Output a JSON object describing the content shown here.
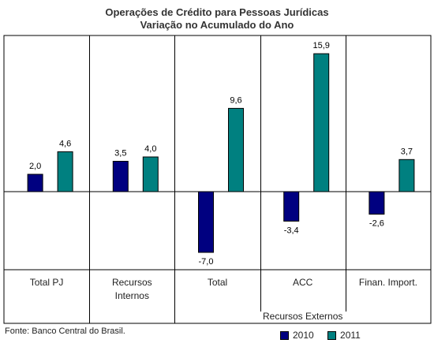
{
  "chart_data": {
    "type": "bar",
    "title": "Operações de Crédito para Pessoas Jurídicas",
    "subtitle": "Variação no Acumulado do Ano",
    "categories": [
      "Total PJ",
      "Recursos Internos",
      "Total",
      "ACC",
      "Finan. Import."
    ],
    "category_labels": [
      [
        "Total PJ"
      ],
      [
        "Recursos",
        "Internos"
      ],
      [
        "Total"
      ],
      [
        "ACC"
      ],
      [
        "Finan. Import."
      ]
    ],
    "group_label": "Recursos Externos",
    "series": [
      {
        "name": "2010",
        "color": "#000080",
        "values": [
          2.0,
          3.5,
          -7.0,
          -3.4,
          -2.6
        ],
        "labels": [
          "2,0",
          "3,5",
          "-7,0",
          "-3,4",
          "-2,6"
        ]
      },
      {
        "name": "2011",
        "color": "#008080",
        "values": [
          4.6,
          4.0,
          9.6,
          15.9,
          3.7
        ],
        "labels": [
          "4,6",
          "4,0",
          "9,6",
          "15,9",
          "3,7"
        ]
      }
    ],
    "ylim": [
      -9,
      18
    ],
    "grid": false,
    "legend": "bottom-right"
  },
  "source": "Fonte: Banco Central do Brasil."
}
